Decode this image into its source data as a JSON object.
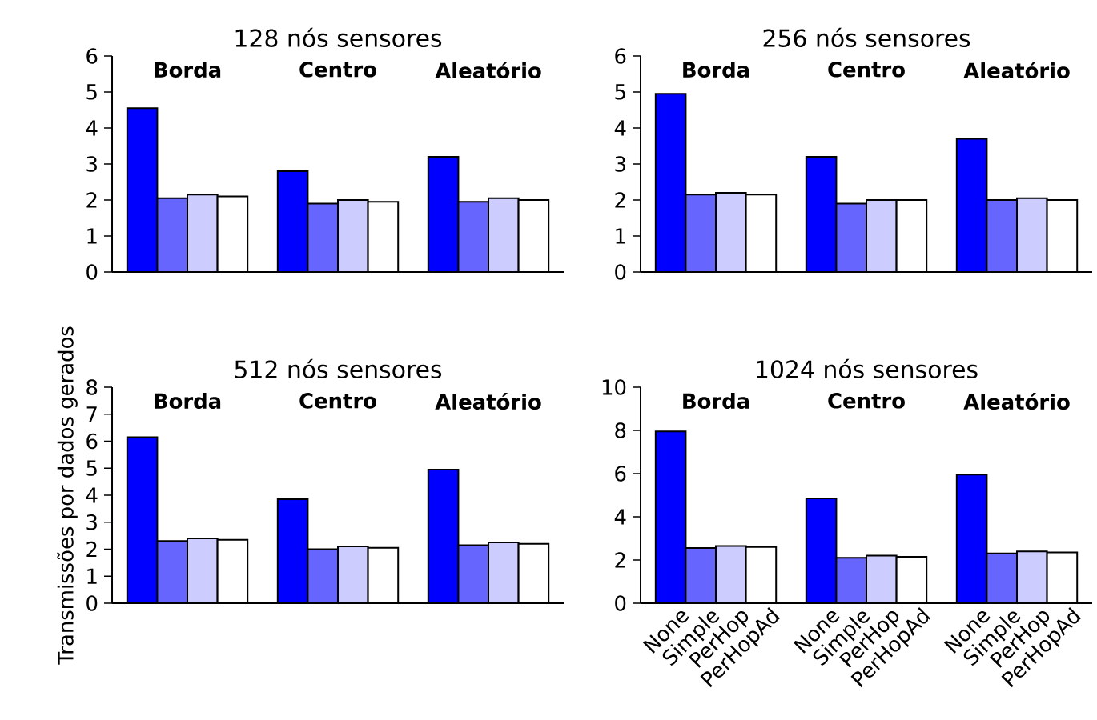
{
  "chart_data": [
    {
      "type": "bar",
      "title": "128 nós sensores",
      "categories": [
        "Borda",
        "Centro",
        "Aleatório"
      ],
      "ylim": [
        0,
        6
      ],
      "yticks": [
        0,
        1,
        2,
        3,
        4,
        5,
        6
      ],
      "series": [
        {
          "color": "#0000ff",
          "values": [
            4.55,
            2.8,
            3.2
          ]
        },
        {
          "color": "#6666ff",
          "values": [
            2.05,
            1.9,
            1.95
          ]
        },
        {
          "color": "#ccccff",
          "values": [
            2.15,
            2.0,
            2.05
          ]
        },
        {
          "color": "#ffffff",
          "values": [
            2.1,
            1.95,
            2.0
          ]
        }
      ]
    },
    {
      "type": "bar",
      "title": "256 nós sensores",
      "categories": [
        "Borda",
        "Centro",
        "Aleatório"
      ],
      "ylim": [
        0,
        6
      ],
      "yticks": [
        0,
        1,
        2,
        3,
        4,
        5,
        6
      ],
      "series": [
        {
          "color": "#0000ff",
          "values": [
            4.95,
            3.2,
            3.7
          ]
        },
        {
          "color": "#6666ff",
          "values": [
            2.15,
            1.9,
            2.0
          ]
        },
        {
          "color": "#ccccff",
          "values": [
            2.2,
            2.0,
            2.05
          ]
        },
        {
          "color": "#ffffff",
          "values": [
            2.15,
            2.0,
            2.0
          ]
        }
      ]
    },
    {
      "type": "bar",
      "title": "512 nós sensores",
      "ylabel": "Transmissões por dados gerados",
      "categories": [
        "Borda",
        "Centro",
        "Aleatório"
      ],
      "ylim": [
        0,
        8
      ],
      "yticks": [
        0,
        1,
        2,
        3,
        4,
        5,
        6,
        7,
        8
      ],
      "series": [
        {
          "color": "#0000ff",
          "values": [
            6.15,
            3.85,
            4.95
          ]
        },
        {
          "color": "#6666ff",
          "values": [
            2.3,
            2.0,
            2.15
          ]
        },
        {
          "color": "#ccccff",
          "values": [
            2.4,
            2.1,
            2.25
          ]
        },
        {
          "color": "#ffffff",
          "values": [
            2.35,
            2.05,
            2.2
          ]
        }
      ]
    },
    {
      "type": "bar",
      "title": "1024 nós sensores",
      "categories": [
        "Borda",
        "Centro",
        "Aleatório"
      ],
      "ylim": [
        0,
        10
      ],
      "yticks": [
        0,
        2,
        4,
        6,
        8,
        10
      ],
      "series": [
        {
          "name": "None",
          "color": "#0000ff",
          "values": [
            7.95,
            4.85,
            5.95
          ]
        },
        {
          "name": "Simple",
          "color": "#6666ff",
          "values": [
            2.55,
            2.1,
            2.3
          ]
        },
        {
          "name": "PerHop",
          "color": "#ccccff",
          "values": [
            2.65,
            2.2,
            2.4
          ]
        },
        {
          "name": "PerHopAd",
          "color": "#ffffff",
          "values": [
            2.6,
            2.15,
            2.35
          ]
        }
      ]
    }
  ]
}
